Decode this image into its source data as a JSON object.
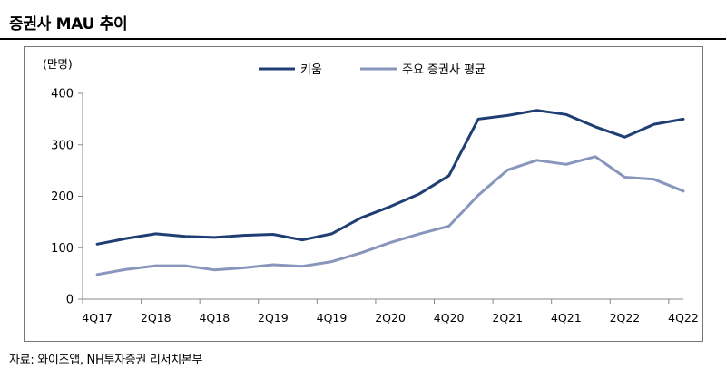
{
  "title": "증권사 MAU 추이",
  "source": "자료: 와이즈앱, NH투자증권 리서치본부",
  "chart_data": {
    "type": "line",
    "unit_label": "(만명)",
    "x": [
      "4Q17",
      "1Q18",
      "2Q18",
      "3Q18",
      "4Q18",
      "1Q19",
      "2Q19",
      "3Q19",
      "4Q19",
      "1Q20",
      "2Q20",
      "3Q20",
      "4Q20",
      "1Q21",
      "2Q21",
      "3Q21",
      "4Q21",
      "1Q22",
      "2Q22",
      "3Q22",
      "4Q22"
    ],
    "x_tick_labels": [
      "4Q17",
      "2Q18",
      "4Q18",
      "2Q19",
      "4Q19",
      "2Q20",
      "4Q20",
      "2Q21",
      "4Q21",
      "2Q22",
      "4Q22"
    ],
    "ylim": [
      0,
      400
    ],
    "y_ticks": [
      0,
      100,
      200,
      300,
      400
    ],
    "grid": false,
    "legend_position": "top-center",
    "series": [
      {
        "name": "키움",
        "color": "#1f3e73",
        "values": [
          107,
          118,
          127,
          122,
          120,
          124,
          126,
          115,
          127,
          158,
          180,
          205,
          240,
          350,
          357,
          367,
          359,
          335,
          315,
          340,
          350
        ]
      },
      {
        "name": "주요 증권사 평균",
        "color": "#8896bd",
        "values": [
          48,
          58,
          65,
          65,
          57,
          61,
          67,
          64,
          73,
          90,
          110,
          127,
          142,
          202,
          251,
          270,
          262,
          277,
          237,
          233,
          210
        ]
      }
    ]
  }
}
